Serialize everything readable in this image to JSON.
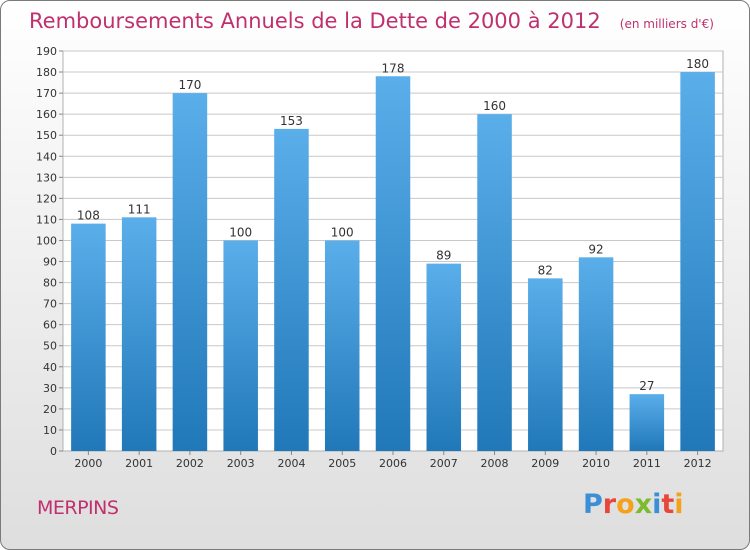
{
  "header": {
    "title": "Remboursements Annuels de la Dette de 2000 à 2012",
    "unit": "(en milliers d'€)"
  },
  "footer": {
    "commune": "MERPINS",
    "brand": "Proxiti",
    "brand_colors": [
      "#3a8fd6",
      "#e8463c",
      "#f4a21c",
      "#7cba2e",
      "#3a8fd6",
      "#e8463c",
      "#f4a21c"
    ]
  },
  "colors": {
    "title": "#c0306e",
    "bar_top": "#5aaeea",
    "bar_bottom": "#2178b8",
    "grid": "#c8c8c8",
    "axis_text": "#333333"
  },
  "chart_data": {
    "type": "bar",
    "categories": [
      "2000",
      "2001",
      "2002",
      "2003",
      "2004",
      "2005",
      "2006",
      "2007",
      "2008",
      "2009",
      "2010",
      "2011",
      "2012"
    ],
    "values": [
      108,
      111,
      170,
      100,
      153,
      100,
      178,
      89,
      160,
      82,
      92,
      27,
      180
    ],
    "ylim": [
      0,
      190
    ],
    "ytick_step": 10,
    "grid": true,
    "data_labels": true
  }
}
